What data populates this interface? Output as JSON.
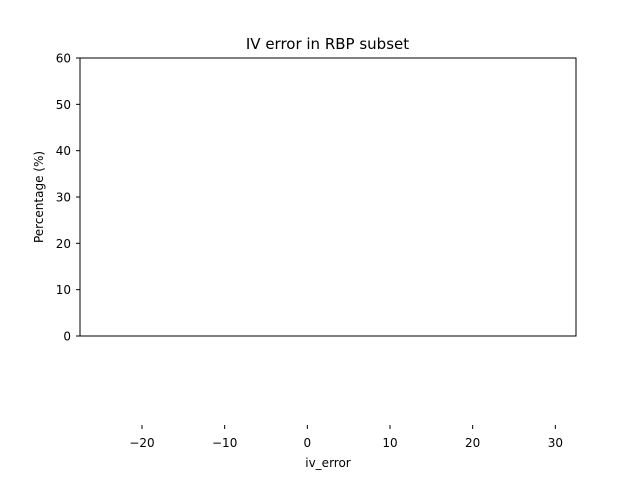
{
  "chart_data": {
    "type": "bar",
    "title": "IV error in RBP subset",
    "xlabel": "iv_error",
    "ylabel": "Percentage (%)",
    "xlim": [
      -27.5,
      32.5
    ],
    "ylim": [
      0,
      60
    ],
    "x_ticks": [
      -20,
      -10,
      0,
      10,
      20,
      30
    ],
    "x_tick_labels": [
      "−20",
      "−10",
      "0",
      "10",
      "20",
      "30"
    ],
    "y_ticks": [
      0,
      10,
      20,
      30,
      40,
      50,
      60
    ],
    "y_tick_labels": [
      "0",
      "10",
      "20",
      "30",
      "40",
      "50",
      "60"
    ],
    "series": [],
    "grid": false,
    "legend": "none"
  }
}
